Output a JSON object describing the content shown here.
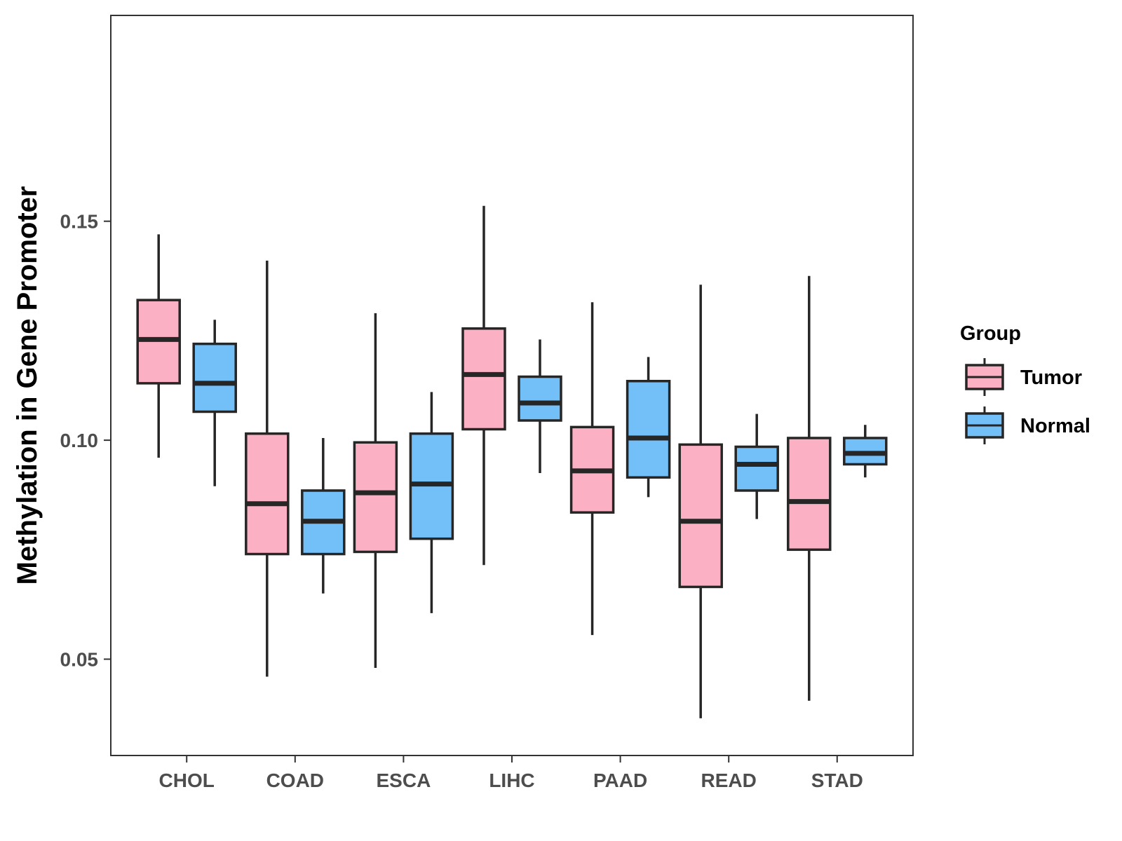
{
  "chart_data": {
    "type": "boxplot",
    "title": "",
    "xlabel": "",
    "ylabel": "Methylation in Gene Promoter",
    "ylim": [
      0.028,
      0.197
    ],
    "y_ticks": [
      0.05,
      0.1,
      0.15
    ],
    "y_tick_labels": [
      "0.05",
      "0.10",
      "0.15"
    ],
    "categories": [
      "CHOL",
      "COAD",
      "ESCA",
      "LIHC",
      "PAAD",
      "READ",
      "STAD"
    ],
    "legend": {
      "title": "Group",
      "position": "right",
      "entries": [
        "Tumor",
        "Normal"
      ]
    },
    "series": [
      {
        "name": "Tumor",
        "color": "#FBB0C3",
        "boxes": [
          {
            "whisker_low": 0.096,
            "q1": 0.113,
            "median": 0.123,
            "q3": 0.132,
            "whisker_high": 0.147
          },
          {
            "whisker_low": 0.046,
            "q1": 0.074,
            "median": 0.0855,
            "q3": 0.1015,
            "whisker_high": 0.141
          },
          {
            "whisker_low": 0.048,
            "q1": 0.0745,
            "median": 0.088,
            "q3": 0.0995,
            "whisker_high": 0.129
          },
          {
            "whisker_low": 0.0715,
            "q1": 0.1025,
            "median": 0.115,
            "q3": 0.1255,
            "whisker_high": 0.1535
          },
          {
            "whisker_low": 0.0555,
            "q1": 0.0835,
            "median": 0.093,
            "q3": 0.103,
            "whisker_high": 0.1315
          },
          {
            "whisker_low": 0.0365,
            "q1": 0.0665,
            "median": 0.0815,
            "q3": 0.099,
            "whisker_high": 0.1355
          },
          {
            "whisker_low": 0.0405,
            "q1": 0.075,
            "median": 0.086,
            "q3": 0.1005,
            "whisker_high": 0.1375
          }
        ]
      },
      {
        "name": "Normal",
        "color": "#73BFF8",
        "boxes": [
          {
            "whisker_low": 0.0895,
            "q1": 0.1065,
            "median": 0.113,
            "q3": 0.122,
            "whisker_high": 0.1275
          },
          {
            "whisker_low": 0.065,
            "q1": 0.074,
            "median": 0.0815,
            "q3": 0.0885,
            "whisker_high": 0.1005
          },
          {
            "whisker_low": 0.0605,
            "q1": 0.0775,
            "median": 0.09,
            "q3": 0.1015,
            "whisker_high": 0.111
          },
          {
            "whisker_low": 0.0925,
            "q1": 0.1045,
            "median": 0.1085,
            "q3": 0.1145,
            "whisker_high": 0.123
          },
          {
            "whisker_low": 0.087,
            "q1": 0.0915,
            "median": 0.1005,
            "q3": 0.1135,
            "whisker_high": 0.119
          },
          {
            "whisker_low": 0.082,
            "q1": 0.0885,
            "median": 0.0945,
            "q3": 0.0985,
            "whisker_high": 0.106
          },
          {
            "whisker_low": 0.0915,
            "q1": 0.0945,
            "median": 0.097,
            "q3": 0.1005,
            "whisker_high": 0.1035
          }
        ]
      }
    ]
  }
}
